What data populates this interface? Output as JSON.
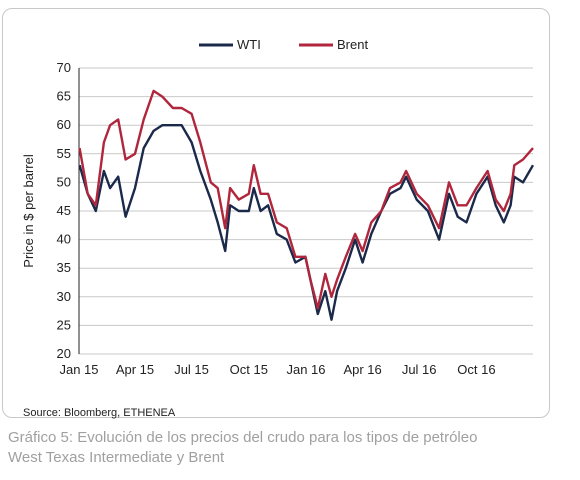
{
  "chart_data": {
    "type": "line",
    "xlabel": "",
    "ylabel": "Price in $ per barrel",
    "ylim": [
      20,
      70
    ],
    "yticks": [
      20,
      25,
      30,
      35,
      40,
      45,
      50,
      55,
      60,
      65,
      70
    ],
    "xlim": [
      "2015-01-01",
      "2016-12-31"
    ],
    "xticks": [
      {
        "date": "2015-01-01",
        "label": "Jan 15"
      },
      {
        "date": "2015-04-01",
        "label": "Apr 15"
      },
      {
        "date": "2015-07-01",
        "label": "Jul 15"
      },
      {
        "date": "2015-10-01",
        "label": "Oct 15"
      },
      {
        "date": "2016-01-01",
        "label": "Jan 16"
      },
      {
        "date": "2016-04-01",
        "label": "Apr 16"
      },
      {
        "date": "2016-07-01",
        "label": "Jul 16"
      },
      {
        "date": "2016-10-01",
        "label": "Oct 16"
      }
    ],
    "grid": "horizontal",
    "legend": "top-center",
    "series": [
      {
        "name": "WTI",
        "color": "#1b2a4a",
        "points": [
          [
            "2015-01-02",
            53
          ],
          [
            "2015-01-15",
            48
          ],
          [
            "2015-01-28",
            45
          ],
          [
            "2015-02-10",
            52
          ],
          [
            "2015-02-20",
            49
          ],
          [
            "2015-03-05",
            51
          ],
          [
            "2015-03-17",
            44
          ],
          [
            "2015-04-01",
            49
          ],
          [
            "2015-04-15",
            56
          ],
          [
            "2015-05-01",
            59
          ],
          [
            "2015-05-15",
            60
          ],
          [
            "2015-06-01",
            60
          ],
          [
            "2015-06-15",
            60
          ],
          [
            "2015-07-01",
            57
          ],
          [
            "2015-07-15",
            52
          ],
          [
            "2015-08-01",
            47
          ],
          [
            "2015-08-12",
            43
          ],
          [
            "2015-08-24",
            38
          ],
          [
            "2015-09-01",
            46
          ],
          [
            "2015-09-15",
            45
          ],
          [
            "2015-10-01",
            45
          ],
          [
            "2015-10-09",
            49
          ],
          [
            "2015-10-20",
            45
          ],
          [
            "2015-11-01",
            46
          ],
          [
            "2015-11-15",
            41
          ],
          [
            "2015-12-01",
            40
          ],
          [
            "2015-12-15",
            36
          ],
          [
            "2015-12-31",
            37
          ],
          [
            "2016-01-08",
            33
          ],
          [
            "2016-01-20",
            27
          ],
          [
            "2016-02-01",
            31
          ],
          [
            "2016-02-11",
            26
          ],
          [
            "2016-02-20",
            31
          ],
          [
            "2016-03-05",
            35
          ],
          [
            "2016-03-20",
            40
          ],
          [
            "2016-04-01",
            36
          ],
          [
            "2016-04-15",
            41
          ],
          [
            "2016-05-01",
            45
          ],
          [
            "2016-05-15",
            48
          ],
          [
            "2016-06-01",
            49
          ],
          [
            "2016-06-10",
            51
          ],
          [
            "2016-06-27",
            47
          ],
          [
            "2016-07-15",
            45
          ],
          [
            "2016-08-02",
            40
          ],
          [
            "2016-08-18",
            48
          ],
          [
            "2016-09-01",
            44
          ],
          [
            "2016-09-15",
            43
          ],
          [
            "2016-10-01",
            48
          ],
          [
            "2016-10-19",
            51
          ],
          [
            "2016-11-01",
            46
          ],
          [
            "2016-11-14",
            43
          ],
          [
            "2016-11-25",
            46
          ],
          [
            "2016-12-01",
            51
          ],
          [
            "2016-12-15",
            50
          ],
          [
            "2016-12-31",
            53
          ]
        ]
      },
      {
        "name": "Brent",
        "color": "#b0263c",
        "points": [
          [
            "2015-01-02",
            56
          ],
          [
            "2015-01-15",
            48
          ],
          [
            "2015-01-28",
            46
          ],
          [
            "2015-02-10",
            57
          ],
          [
            "2015-02-20",
            60
          ],
          [
            "2015-03-05",
            61
          ],
          [
            "2015-03-17",
            54
          ],
          [
            "2015-04-01",
            55
          ],
          [
            "2015-04-15",
            61
          ],
          [
            "2015-05-01",
            66
          ],
          [
            "2015-05-15",
            65
          ],
          [
            "2015-06-01",
            63
          ],
          [
            "2015-06-15",
            63
          ],
          [
            "2015-07-01",
            62
          ],
          [
            "2015-07-15",
            57
          ],
          [
            "2015-08-01",
            50
          ],
          [
            "2015-08-12",
            49
          ],
          [
            "2015-08-24",
            42
          ],
          [
            "2015-09-01",
            49
          ],
          [
            "2015-09-15",
            47
          ],
          [
            "2015-10-01",
            48
          ],
          [
            "2015-10-09",
            53
          ],
          [
            "2015-10-20",
            48
          ],
          [
            "2015-11-01",
            48
          ],
          [
            "2015-11-15",
            43
          ],
          [
            "2015-12-01",
            42
          ],
          [
            "2015-12-15",
            37
          ],
          [
            "2015-12-31",
            37
          ],
          [
            "2016-01-08",
            33
          ],
          [
            "2016-01-20",
            28
          ],
          [
            "2016-02-01",
            34
          ],
          [
            "2016-02-11",
            30
          ],
          [
            "2016-02-20",
            33
          ],
          [
            "2016-03-05",
            37
          ],
          [
            "2016-03-20",
            41
          ],
          [
            "2016-04-01",
            38
          ],
          [
            "2016-04-15",
            43
          ],
          [
            "2016-05-01",
            45
          ],
          [
            "2016-05-15",
            49
          ],
          [
            "2016-06-01",
            50
          ],
          [
            "2016-06-10",
            52
          ],
          [
            "2016-06-27",
            48
          ],
          [
            "2016-07-15",
            46
          ],
          [
            "2016-08-02",
            42
          ],
          [
            "2016-08-18",
            50
          ],
          [
            "2016-09-01",
            46
          ],
          [
            "2016-09-15",
            46
          ],
          [
            "2016-10-01",
            49
          ],
          [
            "2016-10-19",
            52
          ],
          [
            "2016-11-01",
            47
          ],
          [
            "2016-11-14",
            45
          ],
          [
            "2016-11-25",
            48
          ],
          [
            "2016-12-01",
            53
          ],
          [
            "2016-12-15",
            54
          ],
          [
            "2016-12-31",
            56
          ]
        ]
      }
    ]
  },
  "source_text": "Source: Bloomberg, ETHENEA",
  "caption": {
    "line1": "Gráfico 5: Evolución de los precios del crudo para los tipos de petróleo",
    "line2": "West Texas Intermediate y Brent"
  }
}
